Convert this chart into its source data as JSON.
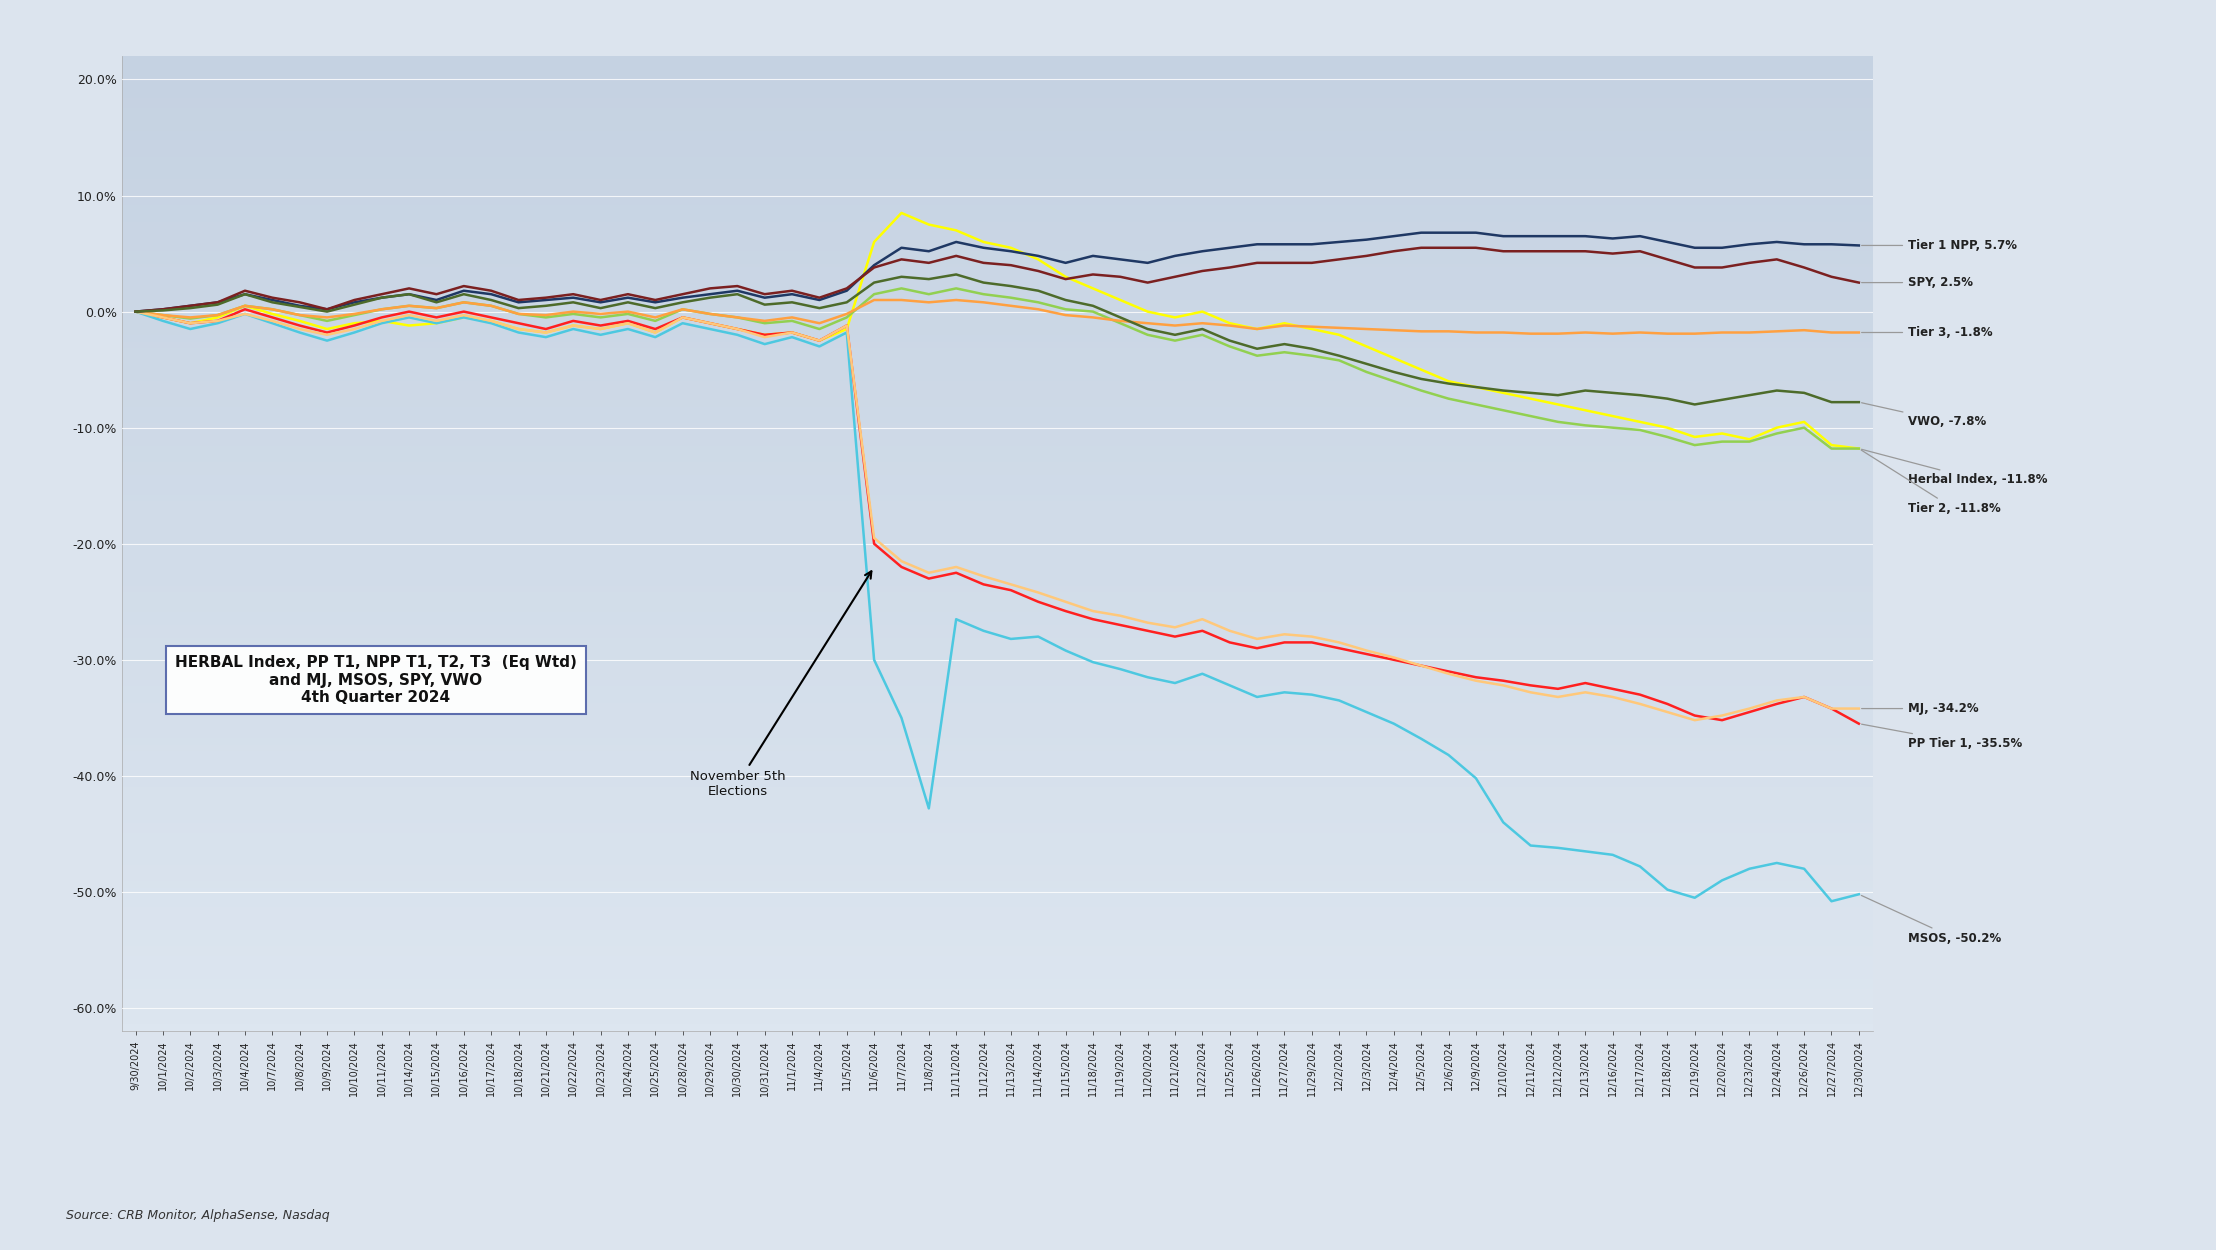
{
  "source": "Source: CRB Monitor, AlphaSense, Nasdaq",
  "ylim": [
    -0.62,
    0.22
  ],
  "yticks": [
    0.2,
    0.1,
    0.0,
    -0.1,
    -0.2,
    -0.3,
    -0.4,
    -0.5,
    -0.6
  ],
  "colors": {
    "Herbal Index": "#ffff00",
    "PP Tier 1": "#ff2020",
    "Tier 2": "#92d050",
    "Tier 3": "#ffa040",
    "MSOS": "#4dc8e0",
    "MJ": "#ffc87a",
    "Tier 1 NPP": "#1f3864",
    "SPY": "#7b2020",
    "VWO": "#4d6b2a"
  },
  "dates": [
    "9/30/2024",
    "10/1/2024",
    "10/2/2024",
    "10/3/2024",
    "10/4/2024",
    "10/7/2024",
    "10/8/2024",
    "10/9/2024",
    "10/10/2024",
    "10/11/2024",
    "10/14/2024",
    "10/15/2024",
    "10/16/2024",
    "10/17/2024",
    "10/18/2024",
    "10/21/2024",
    "10/22/2024",
    "10/23/2024",
    "10/24/2024",
    "10/25/2024",
    "10/28/2024",
    "10/29/2024",
    "10/30/2024",
    "10/31/2024",
    "11/1/2024",
    "11/4/2024",
    "11/5/2024",
    "11/6/2024",
    "11/7/2024",
    "11/8/2024",
    "11/11/2024",
    "11/12/2024",
    "11/13/2024",
    "11/14/2024",
    "11/15/2024",
    "11/18/2024",
    "11/19/2024",
    "11/20/2024",
    "11/21/2024",
    "11/22/2024",
    "11/25/2024",
    "11/26/2024",
    "11/27/2024",
    "11/29/2024",
    "12/2/2024",
    "12/3/2024",
    "12/4/2024",
    "12/5/2024",
    "12/6/2024",
    "12/9/2024",
    "12/10/2024",
    "12/11/2024",
    "12/12/2024",
    "12/13/2024",
    "12/16/2024",
    "12/17/2024",
    "12/18/2024",
    "12/19/2024",
    "12/20/2024",
    "12/23/2024",
    "12/24/2024",
    "12/26/2024",
    "12/27/2024",
    "12/30/2024"
  ],
  "data": {
    "Herbal Index": [
      0.0,
      -0.005,
      -0.01,
      -0.005,
      0.005,
      -0.002,
      -0.008,
      -0.015,
      -0.01,
      -0.008,
      -0.012,
      -0.01,
      -0.005,
      -0.008,
      -0.015,
      -0.018,
      -0.012,
      -0.015,
      -0.01,
      -0.018,
      -0.005,
      -0.01,
      -0.015,
      -0.02,
      -0.018,
      -0.025,
      -0.015,
      0.06,
      0.085,
      0.075,
      0.07,
      0.06,
      0.055,
      0.045,
      0.03,
      0.02,
      0.01,
      0.0,
      -0.005,
      0.0,
      -0.01,
      -0.015,
      -0.01,
      -0.015,
      -0.02,
      -0.03,
      -0.04,
      -0.05,
      -0.06,
      -0.065,
      -0.07,
      -0.075,
      -0.08,
      -0.085,
      -0.09,
      -0.095,
      -0.1,
      -0.108,
      -0.105,
      -0.11,
      -0.1,
      -0.095,
      -0.115,
      -0.118
    ],
    "PP Tier 1": [
      0.0,
      -0.005,
      -0.01,
      -0.008,
      0.002,
      -0.005,
      -0.012,
      -0.018,
      -0.012,
      -0.005,
      0.0,
      -0.005,
      0.0,
      -0.005,
      -0.01,
      -0.015,
      -0.008,
      -0.012,
      -0.008,
      -0.015,
      -0.005,
      -0.01,
      -0.015,
      -0.02,
      -0.018,
      -0.025,
      -0.012,
      -0.2,
      -0.22,
      -0.23,
      -0.225,
      -0.235,
      -0.24,
      -0.25,
      -0.258,
      -0.265,
      -0.27,
      -0.275,
      -0.28,
      -0.275,
      -0.285,
      -0.29,
      -0.285,
      -0.285,
      -0.29,
      -0.295,
      -0.3,
      -0.305,
      -0.31,
      -0.315,
      -0.318,
      -0.322,
      -0.325,
      -0.32,
      -0.325,
      -0.33,
      -0.338,
      -0.348,
      -0.352,
      -0.345,
      -0.338,
      -0.332,
      -0.342,
      -0.355
    ],
    "Tier 2": [
      0.0,
      -0.003,
      -0.006,
      -0.003,
      0.005,
      0.002,
      -0.003,
      -0.008,
      -0.003,
      0.002,
      0.005,
      0.003,
      0.008,
      0.005,
      -0.002,
      -0.005,
      -0.002,
      -0.005,
      -0.002,
      -0.008,
      0.002,
      -0.002,
      -0.005,
      -0.01,
      -0.008,
      -0.015,
      -0.005,
      0.015,
      0.02,
      0.015,
      0.02,
      0.015,
      0.012,
      0.008,
      0.002,
      0.0,
      -0.01,
      -0.02,
      -0.025,
      -0.02,
      -0.03,
      -0.038,
      -0.035,
      -0.038,
      -0.042,
      -0.052,
      -0.06,
      -0.068,
      -0.075,
      -0.08,
      -0.085,
      -0.09,
      -0.095,
      -0.098,
      -0.1,
      -0.102,
      -0.108,
      -0.115,
      -0.112,
      -0.112,
      -0.105,
      -0.1,
      -0.118,
      -0.118
    ],
    "Tier 3": [
      0.0,
      -0.003,
      -0.005,
      -0.003,
      0.005,
      0.002,
      -0.003,
      -0.005,
      -0.002,
      0.002,
      0.005,
      0.003,
      0.008,
      0.005,
      -0.002,
      -0.003,
      0.0,
      -0.002,
      0.0,
      -0.005,
      0.002,
      -0.002,
      -0.005,
      -0.008,
      -0.005,
      -0.01,
      -0.002,
      0.01,
      0.01,
      0.008,
      0.01,
      0.008,
      0.005,
      0.002,
      -0.003,
      -0.005,
      -0.008,
      -0.01,
      -0.012,
      -0.01,
      -0.012,
      -0.015,
      -0.012,
      -0.013,
      -0.014,
      -0.015,
      -0.016,
      -0.017,
      -0.017,
      -0.018,
      -0.018,
      -0.019,
      -0.019,
      -0.018,
      -0.019,
      -0.018,
      -0.019,
      -0.019,
      -0.018,
      -0.018,
      -0.017,
      -0.016,
      -0.018,
      -0.018
    ],
    "MSOS": [
      0.0,
      -0.008,
      -0.015,
      -0.01,
      -0.002,
      -0.01,
      -0.018,
      -0.025,
      -0.018,
      -0.01,
      -0.005,
      -0.01,
      -0.005,
      -0.01,
      -0.018,
      -0.022,
      -0.015,
      -0.02,
      -0.015,
      -0.022,
      -0.01,
      -0.015,
      -0.02,
      -0.028,
      -0.022,
      -0.03,
      -0.018,
      -0.3,
      -0.35,
      -0.428,
      -0.265,
      -0.275,
      -0.282,
      -0.28,
      -0.292,
      -0.302,
      -0.308,
      -0.315,
      -0.32,
      -0.312,
      -0.322,
      -0.332,
      -0.328,
      -0.33,
      -0.335,
      -0.345,
      -0.355,
      -0.368,
      -0.382,
      -0.402,
      -0.44,
      -0.46,
      -0.462,
      -0.465,
      -0.468,
      -0.478,
      -0.498,
      -0.505,
      -0.49,
      -0.48,
      -0.475,
      -0.48,
      -0.508,
      -0.502
    ],
    "MJ": [
      0.0,
      -0.005,
      -0.01,
      -0.008,
      -0.002,
      -0.008,
      -0.015,
      -0.02,
      -0.015,
      -0.008,
      -0.003,
      -0.008,
      -0.003,
      -0.008,
      -0.015,
      -0.018,
      -0.012,
      -0.015,
      -0.01,
      -0.018,
      -0.005,
      -0.01,
      -0.015,
      -0.022,
      -0.018,
      -0.025,
      -0.012,
      -0.195,
      -0.215,
      -0.225,
      -0.22,
      -0.228,
      -0.235,
      -0.242,
      -0.25,
      -0.258,
      -0.262,
      -0.268,
      -0.272,
      -0.265,
      -0.275,
      -0.282,
      -0.278,
      -0.28,
      -0.285,
      -0.292,
      -0.298,
      -0.305,
      -0.312,
      -0.318,
      -0.322,
      -0.328,
      -0.332,
      -0.328,
      -0.332,
      -0.338,
      -0.345,
      -0.352,
      -0.348,
      -0.342,
      -0.335,
      -0.332,
      -0.342,
      -0.342
    ],
    "Tier 1 NPP": [
      0.0,
      0.002,
      0.005,
      0.008,
      0.015,
      0.01,
      0.005,
      0.002,
      0.008,
      0.012,
      0.015,
      0.01,
      0.018,
      0.015,
      0.008,
      0.01,
      0.012,
      0.008,
      0.012,
      0.008,
      0.012,
      0.015,
      0.018,
      0.012,
      0.015,
      0.01,
      0.018,
      0.04,
      0.055,
      0.052,
      0.06,
      0.055,
      0.052,
      0.048,
      0.042,
      0.048,
      0.045,
      0.042,
      0.048,
      0.052,
      0.055,
      0.058,
      0.058,
      0.058,
      0.06,
      0.062,
      0.065,
      0.068,
      0.068,
      0.068,
      0.065,
      0.065,
      0.065,
      0.065,
      0.063,
      0.065,
      0.06,
      0.055,
      0.055,
      0.058,
      0.06,
      0.058,
      0.058,
      0.057
    ],
    "SPY": [
      0.0,
      0.002,
      0.005,
      0.008,
      0.018,
      0.012,
      0.008,
      0.002,
      0.01,
      0.015,
      0.02,
      0.015,
      0.022,
      0.018,
      0.01,
      0.012,
      0.015,
      0.01,
      0.015,
      0.01,
      0.015,
      0.02,
      0.022,
      0.015,
      0.018,
      0.012,
      0.02,
      0.038,
      0.045,
      0.042,
      0.048,
      0.042,
      0.04,
      0.035,
      0.028,
      0.032,
      0.03,
      0.025,
      0.03,
      0.035,
      0.038,
      0.042,
      0.042,
      0.042,
      0.045,
      0.048,
      0.052,
      0.055,
      0.055,
      0.055,
      0.052,
      0.052,
      0.052,
      0.052,
      0.05,
      0.052,
      0.045,
      0.038,
      0.038,
      0.042,
      0.045,
      0.038,
      0.03,
      0.025
    ],
    "VWO": [
      0.0,
      0.001,
      0.003,
      0.006,
      0.015,
      0.008,
      0.004,
      0.0,
      0.006,
      0.012,
      0.015,
      0.008,
      0.015,
      0.01,
      0.003,
      0.005,
      0.008,
      0.003,
      0.008,
      0.003,
      0.008,
      0.012,
      0.015,
      0.006,
      0.008,
      0.003,
      0.008,
      0.025,
      0.03,
      0.028,
      0.032,
      0.025,
      0.022,
      0.018,
      0.01,
      0.005,
      -0.005,
      -0.015,
      -0.02,
      -0.015,
      -0.025,
      -0.032,
      -0.028,
      -0.032,
      -0.038,
      -0.045,
      -0.052,
      -0.058,
      -0.062,
      -0.065,
      -0.068,
      -0.07,
      -0.072,
      -0.068,
      -0.07,
      -0.072,
      -0.075,
      -0.08,
      -0.076,
      -0.072,
      -0.068,
      -0.07,
      -0.078,
      -0.078
    ]
  },
  "annot_text_positions": {
    "Tier 1 NPP, 5.7%": 0.057,
    "SPY, 2.5%": 0.025,
    "Tier 3, -1.8%": -0.018,
    "VWO, -7.8%": -0.095,
    "Herbal Index, -11.8%": -0.145,
    "Tier 2, -11.8%": -0.17,
    "MJ, -34.2%": -0.342,
    "PP Tier 1, -35.5%": -0.372,
    "MSOS, -50.2%": -0.54
  },
  "annot_series_map": {
    "Tier 1 NPP, 5.7%": "Tier 1 NPP",
    "SPY, 2.5%": "SPY",
    "Tier 3, -1.8%": "Tier 3",
    "VWO, -7.8%": "VWO",
    "Herbal Index, -11.8%": "Herbal Index",
    "Tier 2, -11.8%": "Tier 2",
    "MJ, -34.2%": "MJ",
    "PP Tier 1, -35.5%": "PP Tier 1",
    "MSOS, -50.2%": "MSOS"
  },
  "legend_items": [
    [
      "Herbal Index",
      "#ffff00"
    ],
    [
      "PP Tier 1",
      "#ff2020"
    ],
    [
      "Tier 2",
      "#92d050"
    ],
    [
      "Tier 3",
      "#ffa040"
    ],
    [
      "MSOS",
      "#4dc8e0"
    ],
    [
      "MJ",
      "#ffc87a"
    ],
    [
      "Tier 1 NPP",
      "#1f3864"
    ],
    [
      "SPY",
      "#7b2020"
    ],
    [
      "VWO",
      "#4d6b2a"
    ]
  ]
}
